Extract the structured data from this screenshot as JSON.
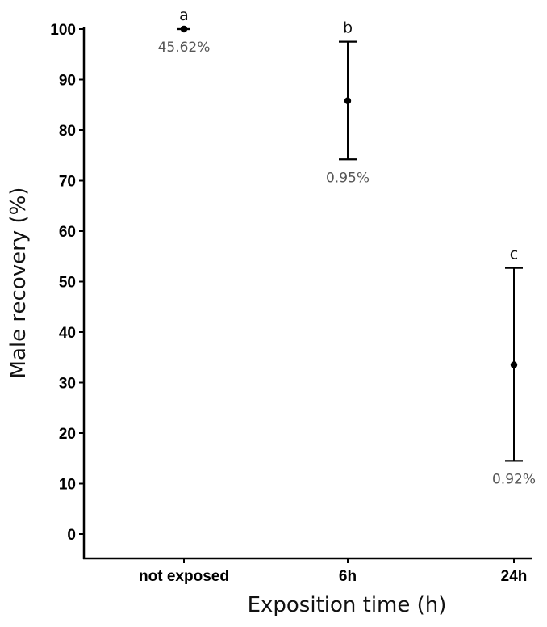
{
  "chart_data": {
    "type": "scatter",
    "xlabel": "Exposition time (h)",
    "ylabel": "Male recovery (%)",
    "categories": [
      "not exposed",
      "6h",
      "24h"
    ],
    "ylim": [
      -5,
      100
    ],
    "yticks": [
      0,
      10,
      20,
      30,
      40,
      50,
      60,
      70,
      80,
      90,
      100
    ],
    "grid": false,
    "series": [
      {
        "values": [
          100,
          85.8,
          33.5
        ],
        "error_low": [
          100,
          74.2,
          14.5
        ],
        "error_high": [
          100,
          97.5,
          52.7
        ],
        "letters": [
          "a",
          "b",
          "c"
        ],
        "annotations": [
          "45.62%",
          "0.95%",
          "0.92%"
        ]
      }
    ]
  }
}
